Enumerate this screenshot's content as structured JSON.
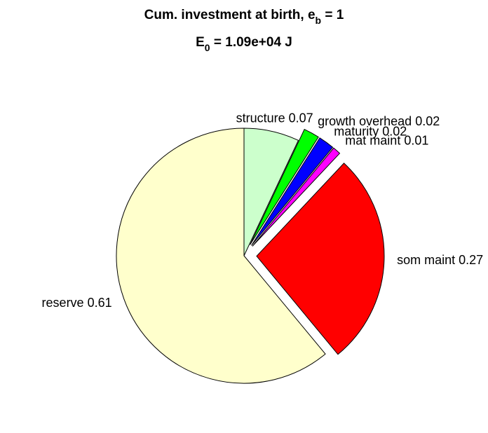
{
  "chart_data": {
    "type": "pie",
    "title": {
      "text": "Cum. investment at birth, e",
      "sub": "b",
      "after": " = 1"
    },
    "subtitle": {
      "text": "E",
      "sub": "0",
      "after": " = 1.09e+04 J"
    },
    "categories": [
      "structure",
      "growth overhead",
      "maturity",
      "mat maint",
      "som maint",
      "reserve"
    ],
    "values": [
      0.07,
      0.02,
      0.02,
      0.01,
      0.27,
      0.61
    ],
    "colors": [
      "#ccffcc",
      "#00ff00",
      "#0000ff",
      "#ff00ff",
      "#ff0000",
      "#ffffcc"
    ],
    "explode": [
      false,
      true,
      true,
      true,
      true,
      false
    ]
  }
}
